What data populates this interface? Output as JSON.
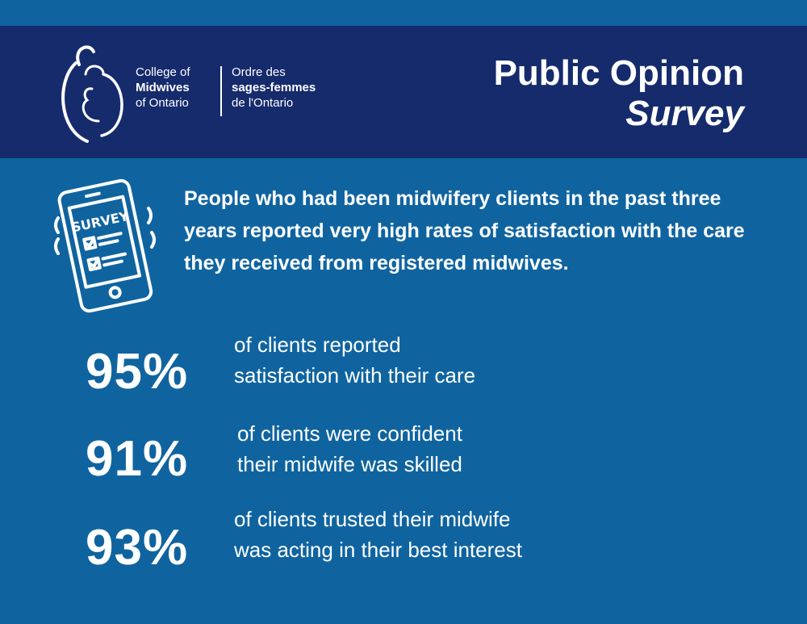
{
  "header": {
    "logo": {
      "en_line1": "College of",
      "en_line2": "Midwives",
      "en_line3": "of Ontario",
      "fr_line1": "Ordre des",
      "fr_line2": "sages-femmes",
      "fr_line3": "de l'Ontario"
    },
    "title": "Public Opinion",
    "subtitle": "Survey"
  },
  "intro": {
    "icon_label": "SURVEY",
    "text": "People who had been midwifery clients in the past three years reported very high rates of satisfaction with the care they received from registered midwives."
  },
  "stats": [
    {
      "value": "95%",
      "line1": "of clients reported",
      "line2": "satisfaction with their care"
    },
    {
      "value": "91%",
      "line1": "of clients were confident",
      "line2": "their midwife was skilled"
    },
    {
      "value": "93%",
      "line1": "of clients trusted their midwife",
      "line2": "was acting in their best interest"
    }
  ],
  "colors": {
    "background": "#0f64a0",
    "header": "#152b6c",
    "text": "#ffffff"
  }
}
